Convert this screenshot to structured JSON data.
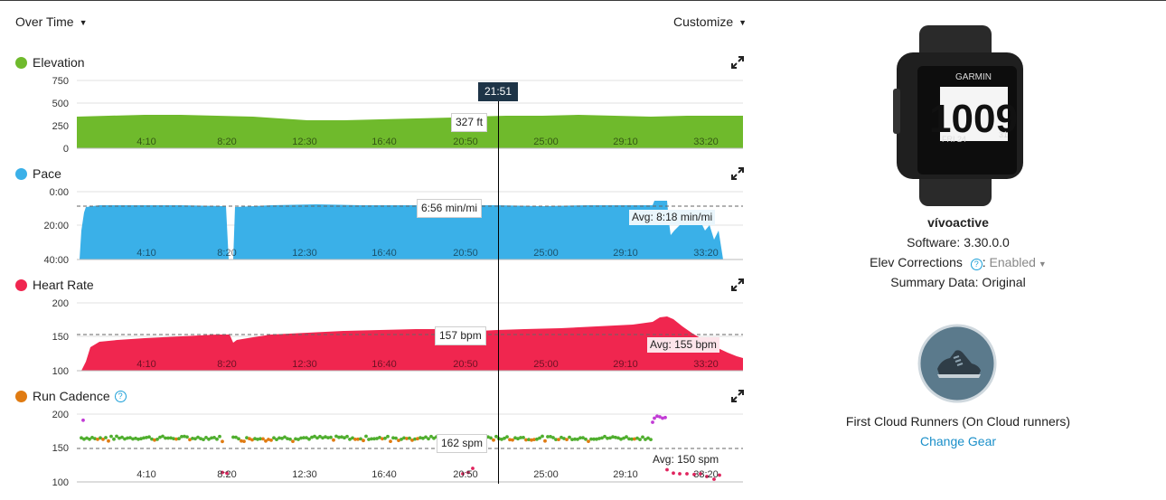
{
  "toolbar": {
    "view_label": "Over Time",
    "customize_label": "Customize"
  },
  "cursor": {
    "time": "21:51"
  },
  "x_ticks": [
    "4:10",
    "8:20",
    "12:30",
    "16:40",
    "20:50",
    "25:00",
    "29:10",
    "33:20"
  ],
  "charts": {
    "elevation": {
      "title": "Elevation",
      "color": "#6fba2c",
      "y_ticks": [
        "750",
        "500",
        "250",
        "0"
      ],
      "tooltip": "327 ft"
    },
    "pace": {
      "title": "Pace",
      "color": "#3ab0e8",
      "y_ticks": [
        "0:00",
        "20:00",
        "40:00"
      ],
      "tooltip": "6:56 min/mi",
      "avg_label": "Avg: 8:18 min/mi"
    },
    "heart_rate": {
      "title": "Heart Rate",
      "color": "#f0264f",
      "y_ticks": [
        "200",
        "150",
        "100"
      ],
      "tooltip": "157 bpm",
      "avg_label": "Avg: 155 bpm"
    },
    "run_cadence": {
      "title": "Run Cadence",
      "color": "#e07b12",
      "y_ticks": [
        "200",
        "150",
        "100"
      ],
      "tooltip": "162 spm",
      "avg_label": "Avg: 150 spm"
    }
  },
  "chart_data": [
    {
      "type": "area",
      "title": "Elevation",
      "ylabel": "ft",
      "ylim": [
        0,
        750
      ],
      "x": [
        0,
        250,
        500,
        750,
        1000,
        1250,
        1311,
        1500,
        1750,
        2000,
        2250
      ],
      "values": [
        320,
        340,
        320,
        300,
        305,
        320,
        327,
        320,
        335,
        330,
        330
      ]
    },
    {
      "type": "area",
      "title": "Pace",
      "ylabel": "min/mi",
      "ylim": [
        0,
        40
      ],
      "y_inverted": true,
      "avg": 8.3,
      "x": [
        0,
        250,
        500,
        750,
        1000,
        1250,
        1311,
        1500,
        1750,
        2000,
        2150
      ],
      "values": [
        8.5,
        7.2,
        7.0,
        7.0,
        7.0,
        7.0,
        6.93,
        7.3,
        7.2,
        6.8,
        18
      ]
    },
    {
      "type": "area",
      "title": "Heart Rate",
      "ylabel": "bpm",
      "ylim": [
        100,
        200
      ],
      "avg": 155,
      "x": [
        0,
        250,
        500,
        750,
        1000,
        1250,
        1311,
        1500,
        1750,
        1950,
        2250
      ],
      "values": [
        100,
        145,
        152,
        155,
        158,
        159,
        157,
        160,
        164,
        179,
        120
      ]
    },
    {
      "type": "scatter",
      "title": "Run Cadence",
      "ylabel": "spm",
      "ylim": [
        100,
        200
      ],
      "avg": 150,
      "x": [
        0,
        250,
        500,
        750,
        1000,
        1250,
        1311,
        1500,
        1750,
        1950,
        2100
      ],
      "values": [
        166,
        165,
        164,
        165,
        164,
        163,
        162,
        164,
        165,
        194,
        112
      ]
    }
  ],
  "device": {
    "watch_brand": "GARMIN",
    "watch_time": "1009",
    "watch_date": "FRI 24",
    "watch_num": "31",
    "name": "vívoactive",
    "software": "Software: 3.30.0.0",
    "elev_label": "Elev Corrections",
    "elev_value": "Enabled",
    "summary": "Summary Data: Original"
  },
  "gear": {
    "name": "First Cloud Runners (On Cloud runners)",
    "change_label": "Change Gear"
  }
}
